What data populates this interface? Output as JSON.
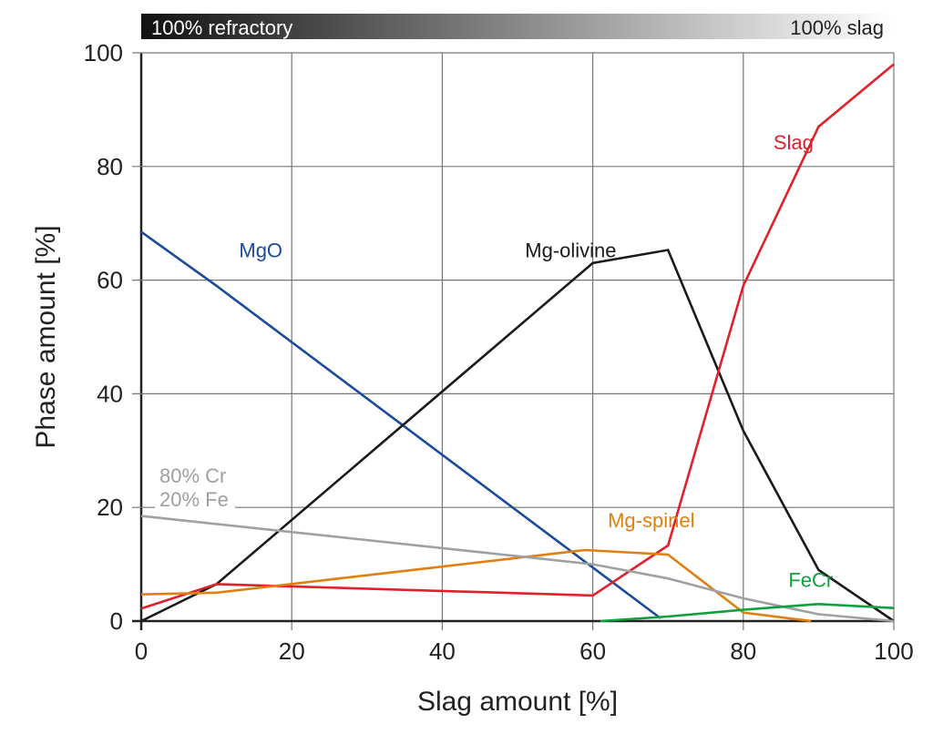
{
  "chart_data": {
    "type": "line",
    "xlabel": "Slag amount [%]",
    "ylabel": "Phase amount [%]",
    "xlim": [
      0,
      100
    ],
    "ylim": [
      0,
      100
    ],
    "xticks": [
      0,
      20,
      40,
      60,
      80,
      100
    ],
    "yticks": [
      0,
      20,
      40,
      60,
      80,
      100
    ],
    "grid": true,
    "gradient_bar": {
      "left_label": "100% refractory",
      "right_label": "100% slag"
    },
    "series": [
      {
        "name": "MgO",
        "color": "#1a4a9c",
        "points": [
          [
            0,
            68.5
          ],
          [
            10,
            59
          ],
          [
            69,
            0.5
          ]
        ]
      },
      {
        "name": "Mg-olivine",
        "color": "#1a1a1a",
        "points": [
          [
            0,
            0
          ],
          [
            10,
            6.5
          ],
          [
            60,
            63
          ],
          [
            70,
            65.3
          ],
          [
            80,
            33.5
          ],
          [
            90,
            9
          ],
          [
            100,
            0
          ]
        ]
      },
      {
        "name": "Slag",
        "color": "#e0202a",
        "points": [
          [
            0,
            2.2
          ],
          [
            10,
            6.5
          ],
          [
            60,
            4.5
          ],
          [
            70,
            13.3
          ],
          [
            80,
            59
          ],
          [
            90,
            87
          ],
          [
            100,
            98
          ]
        ]
      },
      {
        "name": "Mg-spinel",
        "color": "#e07f10",
        "points": [
          [
            0,
            4.7
          ],
          [
            10,
            5
          ],
          [
            59,
            12.5
          ],
          [
            70,
            11.7
          ],
          [
            80,
            1.5
          ],
          [
            89,
            0
          ]
        ]
      },
      {
        "name": "80% Cr 20% Fe",
        "label_lines": [
          "80% Cr",
          "20% Fe"
        ],
        "color": "#a0a0a0",
        "points": [
          [
            0,
            18.5
          ],
          [
            60,
            10
          ],
          [
            70,
            7.5
          ],
          [
            80,
            4
          ],
          [
            90,
            1.2
          ],
          [
            100,
            0
          ]
        ]
      },
      {
        "name": "FeCr",
        "color": "#10a040",
        "points": [
          [
            61,
            0
          ],
          [
            70,
            0.8
          ],
          [
            80,
            2
          ],
          [
            90,
            3
          ],
          [
            100,
            2.3
          ]
        ]
      }
    ],
    "annotations": [
      {
        "text": "MgO",
        "series": "MgO",
        "at": [
          13,
          64
        ]
      },
      {
        "text": "Mg-olivine",
        "series": "Mg-olivine",
        "at": [
          51,
          64
        ]
      },
      {
        "text": "Slag",
        "series": "Slag",
        "at": [
          84,
          83
        ]
      },
      {
        "text": "Mg-spinel",
        "series": "Mg-spinel",
        "at": [
          62,
          16.5
        ]
      },
      {
        "text": "FeCr",
        "series": "FeCr",
        "at": [
          86,
          6
        ]
      }
    ]
  }
}
